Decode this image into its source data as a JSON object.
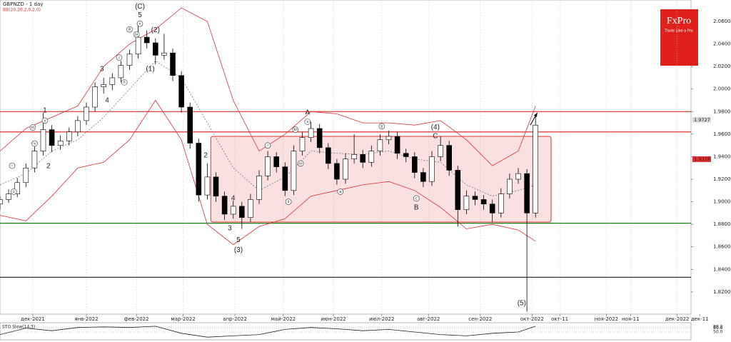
{
  "chart_data": {
    "type": "candlestick",
    "title": "GBPNZD - 1 day",
    "subtitle": "BB(20,20,2,0,2,0)",
    "brand": {
      "name": "FxPro",
      "tagline": "Trade Like a Pro"
    },
    "xlim": [
      0,
      400
    ],
    "ylim": [
      1.8003,
      2.079
    ],
    "xticks": [
      {
        "value": 19,
        "label": "дек-2021"
      },
      {
        "value": 50,
        "label": "янв-2022"
      },
      {
        "value": 79,
        "label": "фев-2022"
      },
      {
        "value": 106,
        "label": "мар-2022"
      },
      {
        "value": 136,
        "label": "апр-2022"
      },
      {
        "value": 164,
        "label": "май-2022"
      },
      {
        "value": 193,
        "label": "июн-2022"
      },
      {
        "value": 221,
        "label": "июл-2022"
      },
      {
        "value": 248,
        "label": "авг-2022"
      },
      {
        "value": 278,
        "label": "сен-2022"
      },
      {
        "value": 308,
        "label": "окт-2022"
      },
      {
        "value": 324,
        "label": "окт-11"
      },
      {
        "value": 351,
        "label": "ноя-2022"
      },
      {
        "value": 365,
        "label": "ноя-11"
      },
      {
        "value": 392,
        "label": "дек-2022"
      },
      {
        "value": 405,
        "label": "дек-11"
      }
    ],
    "yticks": [
      {
        "value": 2.06,
        "label": "2.0600"
      },
      {
        "value": 2.04,
        "label": "2.0400"
      },
      {
        "value": 2.02,
        "label": "2.0200"
      },
      {
        "value": 2.0,
        "label": "2.0000"
      },
      {
        "value": 1.98,
        "label": "1.9800"
      },
      {
        "value": 1.96,
        "label": "1.9600"
      },
      {
        "value": 1.94,
        "label": "1.9400"
      },
      {
        "value": 1.92,
        "label": "1.9200"
      },
      {
        "value": 1.9,
        "label": "1.9000"
      },
      {
        "value": 1.88,
        "label": "1.8800"
      },
      {
        "value": 1.86,
        "label": "1.8600"
      },
      {
        "value": 1.84,
        "label": "1.8400"
      },
      {
        "value": 1.82,
        "label": "1.8200"
      }
    ],
    "price_tags": [
      {
        "value": 1.9727,
        "color": "#d8d8d8"
      },
      {
        "value": 1.9378,
        "color": "#e03030"
      }
    ],
    "up_color": "#ffffff",
    "down_color": "#000000",
    "x": [
      0,
      5,
      10,
      15,
      20,
      25,
      30,
      35,
      40,
      45,
      50,
      55,
      60,
      65,
      70,
      75,
      80,
      85,
      90,
      95,
      100,
      105,
      110,
      115,
      120,
      125,
      130,
      135,
      140,
      145,
      150,
      155,
      160,
      165,
      170,
      175,
      180,
      185,
      190,
      195,
      200,
      205,
      210,
      215,
      220,
      225,
      230,
      235,
      240,
      245,
      250,
      255,
      260,
      265,
      270,
      275,
      280,
      285,
      290,
      295,
      300,
      305,
      310
    ],
    "open": [
      1.898,
      1.902,
      1.907,
      1.917,
      1.93,
      1.945,
      1.964,
      1.95,
      1.954,
      1.962,
      1.972,
      1.984,
      2.002,
      2.004,
      2.01,
      2.021,
      2.031,
      2.046,
      2.041,
      2.03,
      2.032,
      2.012,
      1.984,
      1.952,
      1.906,
      1.922,
      1.905,
      1.889,
      1.896,
      1.886,
      1.902,
      1.923,
      1.94,
      1.931,
      1.91,
      1.945,
      1.957,
      1.965,
      1.948,
      1.934,
      1.92,
      1.938,
      1.942,
      1.935,
      1.945,
      1.955,
      1.958,
      1.943,
      1.94,
      1.926,
      1.918,
      1.94,
      1.95,
      1.928,
      1.893,
      1.905,
      1.902,
      1.898,
      1.89,
      1.907,
      1.92,
      1.925,
      1.89
    ],
    "high": [
      1.905,
      1.911,
      1.921,
      1.934,
      1.949,
      1.979,
      1.968,
      1.959,
      1.966,
      1.976,
      1.988,
      2.006,
      2.01,
      2.014,
      2.025,
      2.035,
      2.056,
      2.052,
      2.045,
      2.049,
      2.036,
      2.016,
      1.988,
      1.956,
      1.934,
      1.926,
      1.909,
      1.901,
      1.9,
      1.907,
      1.928,
      1.945,
      1.944,
      1.935,
      1.95,
      1.962,
      1.971,
      1.969,
      1.952,
      1.938,
      1.943,
      1.96,
      1.946,
      1.95,
      1.96,
      1.963,
      1.962,
      1.947,
      1.944,
      1.93,
      1.945,
      1.958,
      1.954,
      1.932,
      1.91,
      1.909,
      1.906,
      1.902,
      1.912,
      1.925,
      1.93,
      1.929,
      1.976
    ],
    "low": [
      1.893,
      1.899,
      1.904,
      1.913,
      1.926,
      1.941,
      1.944,
      1.946,
      1.95,
      1.958,
      1.968,
      1.98,
      1.996,
      1.999,
      2.006,
      2.017,
      2.027,
      2.036,
      2.022,
      2.026,
      2.007,
      1.979,
      1.947,
      1.9,
      1.902,
      1.9,
      1.884,
      1.885,
      1.876,
      1.882,
      1.898,
      1.919,
      1.926,
      1.905,
      1.906,
      1.941,
      1.953,
      1.943,
      1.929,
      1.915,
      1.916,
      1.934,
      1.93,
      1.931,
      1.941,
      1.951,
      1.938,
      1.935,
      1.921,
      1.913,
      1.914,
      1.936,
      1.923,
      1.878,
      1.889,
      1.897,
      1.893,
      1.882,
      1.886,
      1.903,
      1.916,
      1.8025,
      1.886
    ],
    "close": [
      1.902,
      1.907,
      1.917,
      1.93,
      1.945,
      1.964,
      1.95,
      1.954,
      1.962,
      1.972,
      1.984,
      2.002,
      2.004,
      2.01,
      2.021,
      2.031,
      2.046,
      2.041,
      2.03,
      2.032,
      2.012,
      1.984,
      1.952,
      1.906,
      1.922,
      1.905,
      1.889,
      1.896,
      1.886,
      1.902,
      1.923,
      1.94,
      1.931,
      1.91,
      1.945,
      1.957,
      1.965,
      1.948,
      1.934,
      1.92,
      1.938,
      1.942,
      1.935,
      1.945,
      1.955,
      1.958,
      1.943,
      1.94,
      1.926,
      1.918,
      1.94,
      1.95,
      1.928,
      1.893,
      1.905,
      1.902,
      1.898,
      1.89,
      1.907,
      1.92,
      1.925,
      1.89,
      1.968
    ],
    "bands": {
      "x": [
        0,
        15,
        30,
        45,
        60,
        75,
        90,
        105,
        120,
        135,
        150,
        165,
        180,
        195,
        210,
        225,
        240,
        255,
        270,
        285,
        300,
        310
      ],
      "series": [
        {
          "color": "#e03030",
          "dash": false,
          "values": [
            1.945,
            1.965,
            1.975,
            1.985,
            2.02,
            2.04,
            2.053,
            2.072,
            2.06,
            1.99,
            1.945,
            1.96,
            1.98,
            1.978,
            1.97,
            1.97,
            1.968,
            1.972,
            1.955,
            1.932,
            1.945,
            1.985
          ]
        },
        {
          "color": "#777777",
          "dash": true,
          "values": [
            1.915,
            1.925,
            1.945,
            1.955,
            1.975,
            2.0,
            2.025,
            2.01,
            1.97,
            1.93,
            1.91,
            1.922,
            1.945,
            1.943,
            1.942,
            1.945,
            1.938,
            1.935,
            1.915,
            1.905,
            1.91,
            1.915
          ]
        },
        {
          "color": "#e03030",
          "dash": false,
          "values": [
            1.888,
            1.883,
            1.905,
            1.93,
            1.935,
            1.955,
            1.99,
            1.955,
            1.88,
            1.862,
            1.878,
            1.885,
            1.905,
            1.91,
            1.915,
            1.918,
            1.91,
            1.895,
            1.876,
            1.88,
            1.875,
            1.865
          ]
        }
      ]
    },
    "levels": [
      {
        "value": 1.98,
        "color": "#e03030"
      },
      {
        "value": 1.962,
        "color": "#e03030"
      },
      {
        "value": 1.881,
        "color": "#1a7a1a"
      },
      {
        "value": 1.833,
        "color": "#333333"
      }
    ],
    "zone": {
      "x": [
        122,
        319
      ],
      "y": [
        1.882,
        1.958
      ],
      "color": "#e03030"
    },
    "arrow": {
      "x": [
        307,
        311
      ],
      "y": [
        1.968,
        1.979
      ]
    },
    "annotations": [
      {
        "text": "(C)",
        "x": 81,
        "y": 2.0732,
        "circled": false
      },
      {
        "text": "5",
        "x": 81,
        "y": 2.0656,
        "circled": false
      },
      {
        "text": "(2)",
        "x": 90,
        "y": 2.0523,
        "circled": false
      },
      {
        "text": "(1)",
        "x": 87,
        "y": 2.0175,
        "circled": false
      },
      {
        "text": "3",
        "x": 59,
        "y": 2.0175,
        "circled": false
      },
      {
        "text": "4",
        "x": 62,
        "y": 1.9897,
        "circled": false
      },
      {
        "text": "1",
        "x": 26,
        "y": 1.9808,
        "circled": false
      },
      {
        "text": "2",
        "x": 28,
        "y": 1.9314,
        "circled": false
      },
      {
        "text": "2",
        "x": 119,
        "y": 1.941,
        "circled": false
      },
      {
        "text": "4",
        "x": 135,
        "y": 1.903,
        "circled": false
      },
      {
        "text": "3",
        "x": 133,
        "y": 1.8763,
        "circled": false
      },
      {
        "text": "5",
        "x": 138,
        "y": 1.866,
        "circled": false
      },
      {
        "text": "(3)",
        "x": 138,
        "y": 1.857,
        "circled": false
      },
      {
        "text": "A",
        "x": 178,
        "y": 1.979,
        "circled": false
      },
      {
        "text": "(4)",
        "x": 252,
        "y": 1.966,
        "circled": false
      },
      {
        "text": "C",
        "x": 252,
        "y": 1.958,
        "circled": false
      },
      {
        "text": "B",
        "x": 241,
        "y": 1.8947,
        "circled": false
      },
      {
        "text": "(5)",
        "x": 302,
        "y": 1.8099,
        "circled": false
      },
      {
        "text": "i",
        "x": 7,
        "y": 1.932,
        "circled": true
      },
      {
        "text": "ii",
        "x": 8,
        "y": 1.909,
        "circled": true
      },
      {
        "text": "iii",
        "x": 19,
        "y": 1.966,
        "circled": true
      },
      {
        "text": "iv",
        "x": 20,
        "y": 1.9517,
        "circled": true
      },
      {
        "text": "v",
        "x": 26,
        "y": 1.972,
        "circled": true
      },
      {
        "text": "i",
        "x": 69,
        "y": 2.028,
        "circled": true
      },
      {
        "text": "ii",
        "x": 72,
        "y": 2.006,
        "circled": true
      },
      {
        "text": "iii",
        "x": 75,
        "y": 2.053,
        "circled": true
      },
      {
        "text": "iv",
        "x": 79,
        "y": 2.0485,
        "circled": true
      },
      {
        "text": "v",
        "x": 81,
        "y": 2.058,
        "circled": true
      },
      {
        "text": "i",
        "x": 155,
        "y": 1.95,
        "circled": true
      },
      {
        "text": "ii",
        "x": 167,
        "y": 1.9,
        "circled": true
      },
      {
        "text": "iii",
        "x": 171,
        "y": 1.964,
        "circled": true
      },
      {
        "text": "iv",
        "x": 174,
        "y": 1.934,
        "circled": true
      },
      {
        "text": "v",
        "x": 178,
        "y": 1.971,
        "circled": true
      },
      {
        "text": "a",
        "x": 197,
        "y": 1.909,
        "circled": true
      },
      {
        "text": "b",
        "x": 221,
        "y": 1.967,
        "circled": true
      },
      {
        "text": "c",
        "x": 241,
        "y": 1.903,
        "circled": true
      }
    ],
    "oscillator": {
      "title": "STO Slow(14,3)",
      "ylim": [
        0,
        100
      ],
      "yticks": [
        {
          "value": 89.2,
          "label": "89.2"
        },
        {
          "value": 80,
          "label": "80.0"
        },
        {
          "value": 50,
          "label": "50.0"
        }
      ],
      "x": [
        0,
        15,
        30,
        45,
        60,
        75,
        90,
        105,
        120,
        135,
        150,
        165,
        180,
        195,
        210,
        225,
        240,
        255,
        270,
        285,
        300,
        310
      ],
      "color": "#222222",
      "values": [
        30,
        80,
        60,
        85,
        90,
        85,
        95,
        40,
        10,
        20,
        30,
        70,
        85,
        75,
        60,
        70,
        50,
        30,
        20,
        40,
        50,
        95
      ]
    }
  }
}
